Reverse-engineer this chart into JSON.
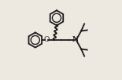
{
  "bg_color": "#ede8e0",
  "bond_color": "#1a1a1a",
  "bond_lw": 1.3,
  "fig_w": 1.55,
  "fig_h": 1.02,
  "dpi": 100,
  "N_label": "N",
  "O_label": "O",
  "font_size": 6.5,
  "ring_r": 0.095
}
